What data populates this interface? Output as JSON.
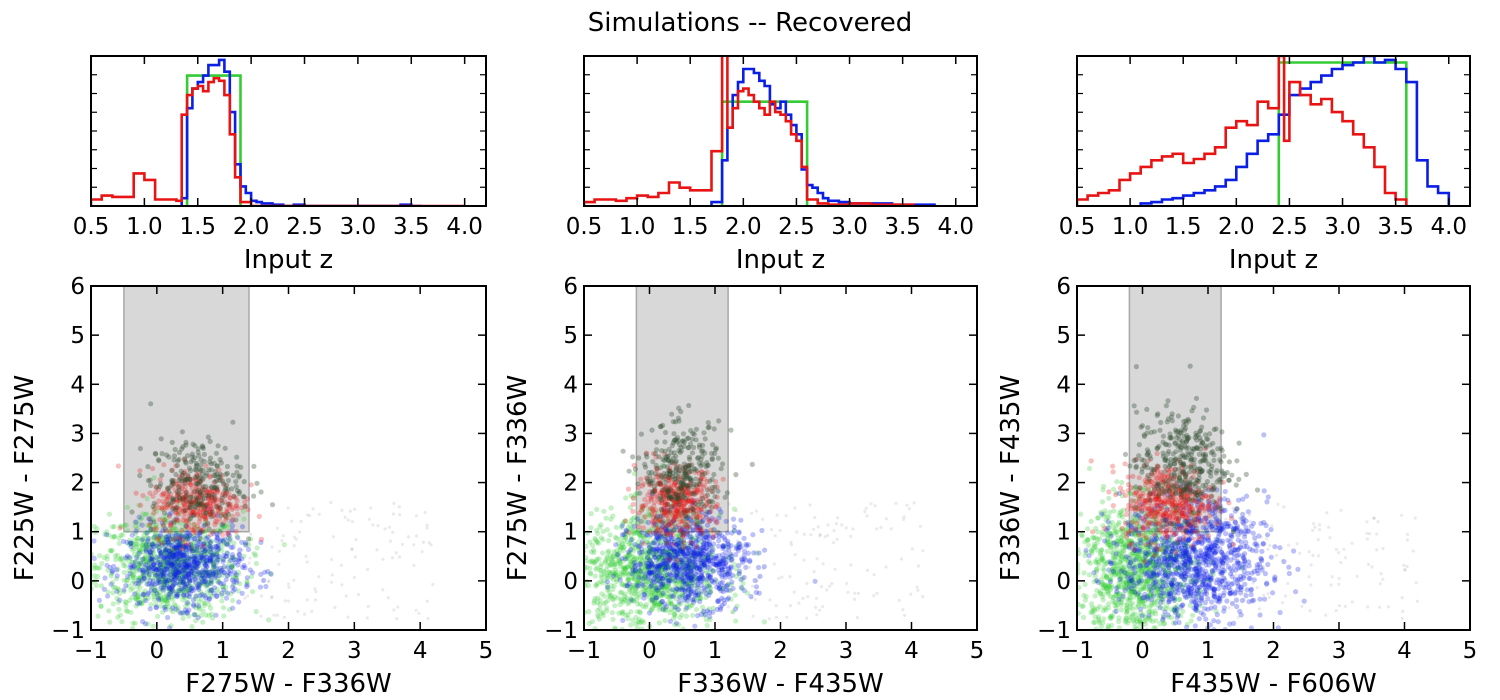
{
  "figure": {
    "title": "Simulations -- Recovered"
  },
  "colors": {
    "green": "#33cc33",
    "blue": "#0a1ee6",
    "red": "#e81414",
    "shade": "#d8d8d8"
  },
  "chart_data": [
    {
      "type": "line",
      "panel": "hist-1",
      "step": true,
      "xlabel": "Input z",
      "ylabel": "",
      "xlim": [
        0.5,
        4.2
      ],
      "ylim": [
        0,
        1.15
      ],
      "xticks": [
        "0.5",
        "1.0",
        "1.5",
        "2.0",
        "2.5",
        "3.0",
        "3.5",
        "4.0"
      ],
      "series": [
        {
          "color": "green",
          "edges": [
            1.4,
            1.9
          ],
          "values": [
            1.0
          ]
        },
        {
          "color": "blue",
          "edges": [
            1.35,
            1.4,
            1.45,
            1.5,
            1.55,
            1.6,
            1.65,
            1.7,
            1.75,
            1.8,
            1.85,
            1.9,
            1.95,
            2.0,
            2.05,
            2.1,
            2.15,
            2.2,
            2.3,
            2.4,
            2.5,
            3.4,
            3.5,
            3.6
          ],
          "values": [
            0.06,
            0.75,
            0.9,
            0.95,
            1.0,
            1.08,
            1.08,
            1.12,
            1.03,
            0.72,
            0.32,
            0.15,
            0.1,
            0.04,
            0.03,
            0.02,
            0.02,
            0.01,
            0.0,
            0.01,
            0.0,
            0.01,
            0.0
          ]
        },
        {
          "color": "red",
          "edges": [
            0.5,
            0.6,
            0.7,
            0.8,
            0.9,
            1.0,
            1.1,
            1.2,
            1.3,
            1.35,
            1.4,
            1.45,
            1.5,
            1.55,
            1.6,
            1.65,
            1.7,
            1.75,
            1.8,
            1.85,
            1.9,
            2.0,
            4.0
          ],
          "values": [
            0.05,
            0.08,
            0.07,
            0.07,
            0.25,
            0.2,
            0.05,
            0.05,
            0.04,
            0.7,
            0.85,
            0.9,
            0.92,
            0.88,
            0.95,
            0.98,
            0.96,
            0.85,
            0.55,
            0.22,
            0.03,
            0.0
          ]
        }
      ]
    },
    {
      "type": "line",
      "panel": "hist-2",
      "step": true,
      "xlabel": "Input z",
      "ylabel": "",
      "xlim": [
        0.5,
        4.2
      ],
      "ylim": [
        0,
        1.15
      ],
      "xticks": [
        "0.5",
        "1.0",
        "1.5",
        "2.0",
        "2.5",
        "3.0",
        "3.5",
        "4.0"
      ],
      "series": [
        {
          "color": "green",
          "edges": [
            1.8,
            2.6
          ],
          "values": [
            0.8
          ]
        },
        {
          "color": "blue",
          "edges": [
            1.7,
            1.8,
            1.85,
            1.9,
            1.95,
            2.0,
            2.05,
            2.1,
            2.15,
            2.2,
            2.25,
            2.3,
            2.35,
            2.4,
            2.45,
            2.5,
            2.55,
            2.6,
            2.65,
            2.7,
            2.75,
            2.8,
            2.9,
            3.0,
            3.2,
            3.4,
            3.6,
            3.8
          ],
          "values": [
            0.03,
            0.35,
            0.6,
            0.85,
            0.95,
            1.05,
            1.05,
            1.02,
            0.96,
            0.92,
            0.78,
            0.75,
            0.8,
            0.7,
            0.62,
            0.55,
            0.28,
            0.16,
            0.14,
            0.1,
            0.06,
            0.04,
            0.03,
            0.02,
            0.02,
            0.01,
            0.01
          ]
        },
        {
          "color": "red",
          "edges": [
            0.5,
            0.6,
            0.7,
            0.8,
            0.9,
            1.0,
            1.1,
            1.2,
            1.3,
            1.4,
            1.5,
            1.6,
            1.7,
            1.8,
            1.85,
            1.9,
            1.95,
            2.0,
            2.05,
            2.1,
            2.15,
            2.2,
            2.25,
            2.3,
            2.35,
            2.4,
            2.45,
            2.5,
            2.55,
            2.6,
            2.7,
            2.8,
            3.0,
            3.2,
            3.6
          ],
          "values": [
            0.03,
            0.05,
            0.05,
            0.04,
            0.06,
            0.08,
            0.07,
            0.1,
            0.18,
            0.14,
            0.12,
            0.12,
            0.42,
            1.2,
            0.6,
            0.75,
            0.88,
            0.9,
            0.85,
            0.8,
            0.75,
            0.7,
            0.8,
            0.72,
            0.7,
            0.65,
            0.55,
            0.5,
            0.3,
            0.05,
            0.02,
            0.01,
            0.02,
            0.01
          ]
        }
      ]
    },
    {
      "type": "line",
      "panel": "hist-3",
      "step": true,
      "xlabel": "Input z",
      "ylabel": "",
      "xlim": [
        0.5,
        4.2
      ],
      "ylim": [
        0,
        1.15
      ],
      "xticks": [
        "0.5",
        "1.0",
        "1.5",
        "2.0",
        "2.5",
        "3.0",
        "3.5",
        "4.0"
      ],
      "series": [
        {
          "color": "green",
          "edges": [
            2.4,
            3.6
          ],
          "values": [
            1.1
          ]
        },
        {
          "color": "blue",
          "edges": [
            1.1,
            1.2,
            1.3,
            1.4,
            1.5,
            1.6,
            1.7,
            1.8,
            1.9,
            2.0,
            2.1,
            2.2,
            2.3,
            2.4,
            2.5,
            2.6,
            2.7,
            2.8,
            2.9,
            3.0,
            3.1,
            3.2,
            3.3,
            3.4,
            3.5,
            3.6,
            3.7,
            3.8,
            3.9,
            4.0
          ],
          "values": [
            0.02,
            0.03,
            0.05,
            0.06,
            0.08,
            0.1,
            0.12,
            0.15,
            0.2,
            0.3,
            0.4,
            0.5,
            0.55,
            0.7,
            0.85,
            0.9,
            0.95,
            1.0,
            1.05,
            1.08,
            1.1,
            1.15,
            1.1,
            1.12,
            1.05,
            0.95,
            0.35,
            0.15,
            0.1
          ]
        },
        {
          "color": "red",
          "edges": [
            0.5,
            0.6,
            0.7,
            0.8,
            0.9,
            1.0,
            1.1,
            1.2,
            1.3,
            1.4,
            1.5,
            1.6,
            1.7,
            1.8,
            1.9,
            2.0,
            2.1,
            2.2,
            2.3,
            2.4,
            2.45,
            2.5,
            2.6,
            2.7,
            2.8,
            2.9,
            3.0,
            3.1,
            3.2,
            3.3,
            3.4,
            3.5,
            3.6
          ],
          "values": [
            0.05,
            0.08,
            0.1,
            0.12,
            0.2,
            0.25,
            0.3,
            0.35,
            0.38,
            0.4,
            0.33,
            0.36,
            0.4,
            0.45,
            0.6,
            0.65,
            0.62,
            0.8,
            0.75,
            1.15,
            0.5,
            0.95,
            0.85,
            0.78,
            0.82,
            0.72,
            0.65,
            0.55,
            0.45,
            0.3,
            0.1,
            0.05
          ]
        }
      ]
    },
    {
      "type": "scatter",
      "panel": "cc-1",
      "xlabel": "F275W - F336W",
      "ylabel": "F225W - F275W",
      "xlim": [
        -1,
        5
      ],
      "ylim": [
        -1,
        6
      ],
      "xticks": [
        "−1",
        "0",
        "1",
        "2",
        "3",
        "4",
        "5"
      ],
      "yticks": [
        "−1",
        "0",
        "1",
        "2",
        "3",
        "4",
        "5",
        "6"
      ],
      "selection_box": {
        "x": [
          -0.5,
          1.4
        ],
        "y": [
          1.0,
          6
        ]
      },
      "clouds": [
        {
          "color": "green",
          "n": 900,
          "cx": 0.2,
          "cy": 0.3,
          "sx": 0.55,
          "sy": 0.55
        },
        {
          "color": "blue",
          "n": 700,
          "cx": 0.4,
          "cy": 0.3,
          "sx": 0.45,
          "sy": 0.4
        },
        {
          "color": "red",
          "n": 350,
          "cx": 0.6,
          "cy": 1.6,
          "sx": 0.35,
          "sy": 0.35
        },
        {
          "color": "dark",
          "n": 250,
          "cx": 0.6,
          "cy": 2.0,
          "sx": 0.35,
          "sy": 0.45
        }
      ]
    },
    {
      "type": "scatter",
      "panel": "cc-2",
      "xlabel": "F336W - F435W",
      "ylabel": "F275W - F336W",
      "xlim": [
        -1,
        5
      ],
      "ylim": [
        -1,
        6
      ],
      "xticks": [
        "−1",
        "0",
        "1",
        "2",
        "3",
        "4",
        "5"
      ],
      "yticks": [
        "−1",
        "0",
        "1",
        "2",
        "3",
        "4",
        "5",
        "6"
      ],
      "selection_box": {
        "x": [
          -0.2,
          1.2
        ],
        "y": [
          1.0,
          6
        ]
      },
      "clouds": [
        {
          "color": "green",
          "n": 1000,
          "cx": 0.0,
          "cy": 0.2,
          "sx": 0.55,
          "sy": 0.6
        },
        {
          "color": "blue",
          "n": 800,
          "cx": 0.6,
          "cy": 0.4,
          "sx": 0.45,
          "sy": 0.45
        },
        {
          "color": "red",
          "n": 400,
          "cx": 0.4,
          "cy": 1.6,
          "sx": 0.3,
          "sy": 0.35
        },
        {
          "color": "dark",
          "n": 300,
          "cx": 0.5,
          "cy": 2.2,
          "sx": 0.3,
          "sy": 0.5
        }
      ]
    },
    {
      "type": "scatter",
      "panel": "cc-3",
      "xlabel": "F435W - F606W",
      "ylabel": "F336W - F435W",
      "xlim": [
        -1,
        5
      ],
      "ylim": [
        -1,
        6
      ],
      "xticks": [
        "−1",
        "0",
        "1",
        "2",
        "3",
        "4",
        "5"
      ],
      "yticks": [
        "−1",
        "0",
        "1",
        "2",
        "3",
        "4",
        "5",
        "6"
      ],
      "selection_box": {
        "x": [
          -0.2,
          1.2
        ],
        "y": [
          1.0,
          6
        ]
      },
      "clouds": [
        {
          "color": "green",
          "n": 1000,
          "cx": -0.1,
          "cy": 0.2,
          "sx": 0.45,
          "sy": 0.7
        },
        {
          "color": "blue",
          "n": 1000,
          "cx": 0.8,
          "cy": 0.4,
          "sx": 0.55,
          "sy": 0.6
        },
        {
          "color": "red",
          "n": 450,
          "cx": 0.4,
          "cy": 1.6,
          "sx": 0.35,
          "sy": 0.4
        },
        {
          "color": "dark",
          "n": 350,
          "cx": 0.6,
          "cy": 2.4,
          "sx": 0.35,
          "sy": 0.55
        }
      ]
    }
  ]
}
